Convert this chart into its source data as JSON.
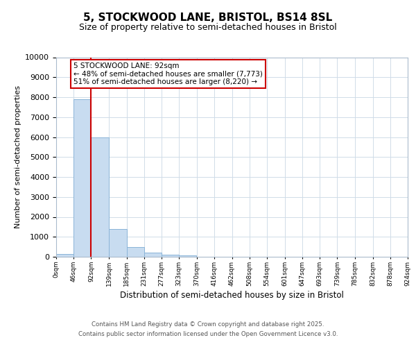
{
  "title": "5, STOCKWOOD LANE, BRISTOL, BS14 8SL",
  "subtitle": "Size of property relative to semi-detached houses in Bristol",
  "xlabel": "Distribution of semi-detached houses by size in Bristol",
  "ylabel": "Number of semi-detached properties",
  "bin_edges": [
    0,
    46,
    92,
    139,
    185,
    231,
    277,
    323,
    370,
    416,
    462,
    508,
    554,
    601,
    647,
    693,
    739,
    785,
    832,
    878,
    924
  ],
  "bin_counts": [
    150,
    7900,
    6000,
    1400,
    500,
    200,
    100,
    70,
    0,
    0,
    0,
    0,
    0,
    0,
    0,
    0,
    0,
    0,
    0,
    0
  ],
  "bar_color": "#c8dcf0",
  "bar_edgecolor": "#8ab4d8",
  "property_value": 92,
  "property_line_color": "#cc0000",
  "annotation_text": "5 STOCKWOOD LANE: 92sqm\n← 48% of semi-detached houses are smaller (7,773)\n51% of semi-detached houses are larger (8,220) →",
  "annotation_boxcolor": "white",
  "annotation_edgecolor": "#cc0000",
  "ylim": [
    0,
    10000
  ],
  "xlim": [
    0,
    924
  ],
  "footnote_line1": "Contains HM Land Registry data © Crown copyright and database right 2025.",
  "footnote_line2": "Contains public sector information licensed under the Open Government Licence v3.0.",
  "background_color": "#ffffff",
  "plot_background": "#ffffff",
  "grid_color": "#d0dce8"
}
